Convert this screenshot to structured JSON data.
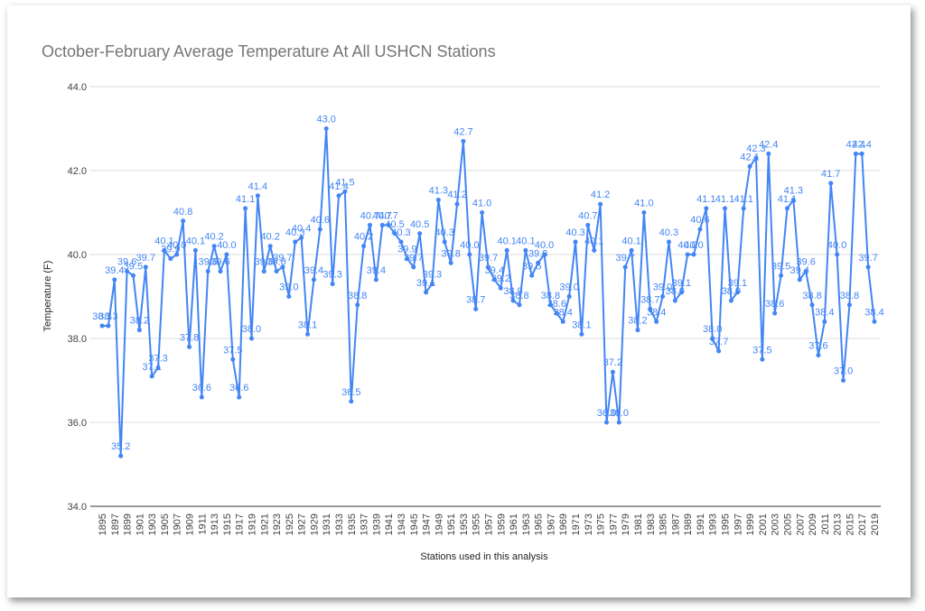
{
  "chart_data": {
    "type": "line",
    "title": "October-February Average Temperature At All USHCN Stations",
    "x_label": "Stations used in this analysis",
    "y_label": "Temperature (F)",
    "categories": [
      "1895",
      null,
      "1897",
      null,
      "1899",
      null,
      "1901",
      null,
      "1903",
      null,
      "1905",
      null,
      "1907",
      null,
      "1909",
      null,
      "1911",
      null,
      "1913",
      null,
      "1915",
      null,
      "1917",
      null,
      "1919",
      null,
      "1921",
      null,
      "1923",
      null,
      "1925",
      null,
      "1927",
      null,
      "1929",
      null,
      "1931",
      null,
      "1933",
      null,
      "1935",
      null,
      "1937",
      null,
      "1939",
      null,
      "1941",
      null,
      "1943",
      null,
      "1945",
      null,
      "1947",
      null,
      "1949",
      null,
      "1951",
      null,
      "1953",
      null,
      "1955",
      null,
      "1957",
      null,
      "1959",
      null,
      "1961",
      null,
      "1963",
      null,
      "1965",
      null,
      "1967",
      null,
      "1969",
      null,
      "1971",
      null,
      "1973",
      null,
      "1975",
      null,
      "1977",
      null,
      "1979",
      null,
      "1981",
      null,
      "1983",
      null,
      "1985",
      null,
      "1987",
      null,
      "1989",
      null,
      "1991",
      null,
      "1993",
      null,
      "1995",
      null,
      "1997",
      null,
      "1999",
      null,
      "2001",
      null,
      "2003",
      null,
      "2005",
      null,
      "2007",
      null,
      "2009",
      null,
      "2011",
      null,
      "2013",
      null,
      "2015",
      null,
      "2017",
      null,
      "2019"
    ],
    "series": [
      {
        "name": "Temperature",
        "color": "#4285f4",
        "values": [
          38.3,
          38.3,
          39.4,
          35.2,
          39.6,
          39.5,
          38.2,
          39.7,
          37.1,
          37.3,
          40.1,
          39.9,
          40.0,
          40.8,
          37.8,
          40.1,
          36.6,
          39.6,
          40.2,
          39.6,
          40.0,
          37.5,
          36.6,
          41.1,
          38.0,
          41.4,
          39.6,
          40.2,
          39.6,
          39.7,
          39.0,
          40.3,
          40.4,
          38.1,
          39.4,
          40.6,
          43.0,
          39.3,
          41.4,
          41.5,
          36.5,
          38.8,
          40.2,
          40.7,
          39.4,
          40.7,
          40.7,
          40.5,
          40.3,
          39.9,
          39.7,
          40.5,
          39.1,
          39.3,
          41.3,
          40.3,
          39.8,
          41.2,
          42.7,
          40.0,
          38.7,
          41.0,
          39.7,
          39.4,
          39.2,
          40.1,
          38.9,
          38.8,
          40.1,
          39.5,
          39.8,
          40.0,
          38.8,
          38.6,
          38.4,
          39.0,
          40.3,
          38.1,
          40.7,
          40.1,
          41.2,
          36.0,
          37.2,
          36.0,
          39.7,
          40.1,
          38.2,
          41.0,
          38.7,
          38.4,
          39.0,
          40.3,
          38.9,
          39.1,
          40.0,
          40.0,
          40.6,
          41.1,
          38.0,
          37.7,
          41.1,
          38.9,
          39.1,
          41.1,
          42.1,
          42.3,
          37.5,
          42.4,
          38.6,
          39.5,
          41.1,
          41.3,
          39.4,
          39.6,
          38.8,
          37.6,
          38.4,
          41.7,
          40.0,
          37.0,
          38.8,
          42.4,
          42.4,
          39.7,
          38.4
        ],
        "value_labels": [
          "38.3",
          "38.3",
          "39.4",
          "35.2",
          "39.6",
          "39.5",
          "38.2",
          "39.7",
          "37.1",
          "37.3",
          "40.1",
          "39.9",
          "40.0",
          "40.8",
          "37.8",
          "40.1",
          "36.6",
          "39.6",
          "40.2",
          "39.6",
          "40.0",
          "37.5",
          "36.6",
          "41.1",
          "38.0",
          "41.4",
          "39.6",
          "40.2",
          "39.6",
          "39.7",
          "39.0",
          "40.3",
          "40.4",
          "38.1",
          "39.4",
          "40.6",
          "43.0",
          "39.3",
          "41.4",
          "41.5",
          "36.5",
          "38.8",
          "40.2",
          "40.7",
          "39.4",
          "40.7",
          "40.7",
          "40.5",
          "40.3",
          "39.9",
          "39.7",
          "40.5",
          "39.1",
          "39.3",
          "41.3",
          "40.3",
          "39.8",
          "41.2",
          "42.7",
          "40.0",
          "38.7",
          "41.0",
          "39.7",
          "39.4",
          "39.2",
          "40.1",
          "38.9",
          "38.8",
          "40.1",
          "39.5",
          "39.8",
          "40.0",
          "38.8",
          "38.6",
          "38.4",
          "39.0",
          "40.3",
          "38.1",
          "40.7",
          "40.1",
          "41.2",
          "36.0",
          "37.2",
          "36.0",
          "39.7",
          "40.1",
          "38.2",
          "41.0",
          "38.7",
          "38.4",
          "39.0",
          "40.3",
          "38.9",
          "39.1",
          "40.0",
          "40.0",
          "40.6",
          "41.1",
          "38.0",
          "37.7",
          "41.1",
          "38.9",
          "39.1",
          "41.1",
          "42.1",
          "42.3",
          "37.5",
          "42.4",
          "38.6",
          "39.5",
          "41.1",
          "41.3",
          "39.4",
          "39.6",
          "38.8",
          "37.6",
          "38.4",
          "41.7",
          "40.0",
          "37.0",
          "38.8",
          "42.4",
          "42.4",
          "39.7",
          "38.4"
        ]
      }
    ],
    "ylim": [
      34,
      44
    ],
    "yticks": [
      {
        "value": 34,
        "label": "34.0"
      },
      {
        "value": 36,
        "label": "36.0"
      },
      {
        "value": 38,
        "label": "38.0"
      },
      {
        "value": 40,
        "label": "40.0"
      },
      {
        "value": 42,
        "label": "42.0"
      },
      {
        "value": 44,
        "label": "44.0"
      }
    ],
    "grid": true
  }
}
